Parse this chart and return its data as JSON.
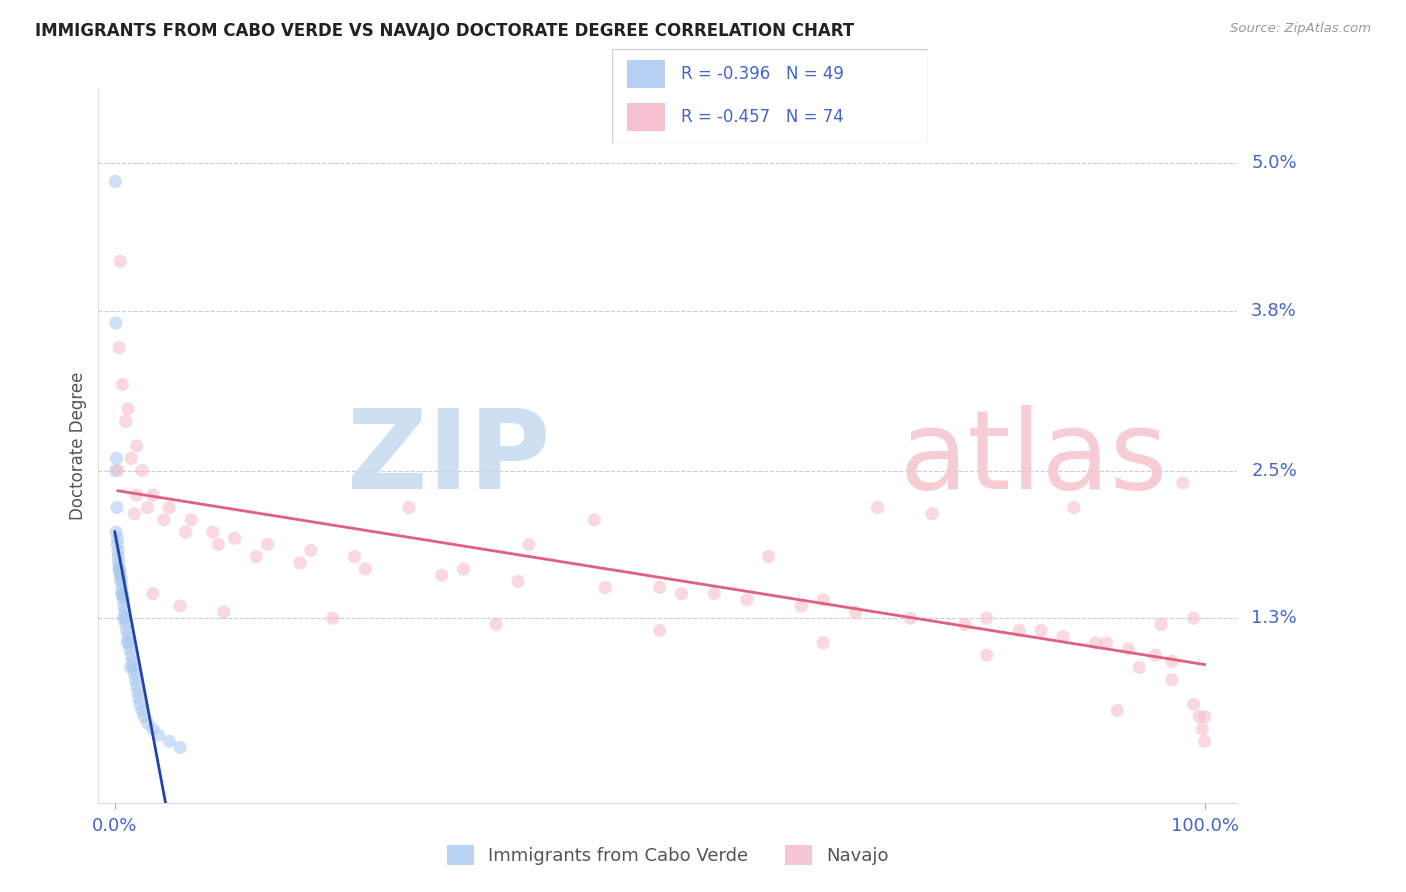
{
  "title": "IMMIGRANTS FROM CABO VERDE VS NAVAJO DOCTORATE DEGREE CORRELATION CHART",
  "source": "Source: ZipAtlas.com",
  "ylabel": "Doctorate Degree",
  "cabo_verde_color": "#A8C8F0",
  "navajo_color": "#F5B8C8",
  "cabo_verde_line_color": "#2244AA",
  "navajo_line_color": "#E06080",
  "axis_label_color": "#4466CC",
  "grid_color": "#CCCCCC",
  "background_color": "#FFFFFF",
  "title_fontsize": 12,
  "marker_size": 90,
  "marker_alpha": 0.55,
  "ytick_vals": [
    5.0,
    3.8,
    2.5,
    1.3
  ],
  "ytick_labels": [
    "5.0%",
    "3.8%",
    "2.5%",
    "1.3%"
  ],
  "legend_text_color": "#4466CC",
  "watermark_zip_color": "#C8DCEF",
  "watermark_atlas_color": "#F5C8D0",
  "cabo_verde_x": [
    0.05,
    0.1,
    0.15,
    0.2,
    0.25,
    0.3,
    0.35,
    0.4,
    0.45,
    0.5,
    0.55,
    0.6,
    0.65,
    0.7,
    0.75,
    0.8,
    0.85,
    0.9,
    0.95,
    1.0,
    1.1,
    1.2,
    1.3,
    1.4,
    1.5,
    1.6,
    1.7,
    1.8,
    1.9,
    2.0,
    2.1,
    2.2,
    2.3,
    2.5,
    2.7,
    3.0,
    3.5,
    4.0,
    5.0,
    6.0,
    0.12,
    0.22,
    0.32,
    0.42,
    0.62,
    0.82,
    1.15,
    1.45,
    0.08
  ],
  "cabo_verde_y": [
    4.85,
    3.7,
    2.6,
    2.2,
    1.95,
    1.85,
    1.75,
    1.7,
    1.68,
    1.65,
    1.62,
    1.6,
    1.55,
    1.5,
    1.48,
    1.45,
    1.4,
    1.35,
    1.3,
    1.25,
    1.2,
    1.15,
    1.1,
    1.05,
    1.0,
    0.95,
    0.9,
    0.85,
    0.8,
    0.75,
    0.7,
    0.65,
    0.6,
    0.55,
    0.5,
    0.45,
    0.4,
    0.35,
    0.3,
    0.25,
    2.0,
    1.9,
    1.8,
    1.7,
    1.5,
    1.3,
    1.1,
    0.9,
    2.5
  ],
  "navajo_x": [
    0.4,
    0.7,
    1.0,
    1.5,
    2.0,
    2.5,
    3.5,
    5.0,
    7.0,
    9.0,
    11.0,
    14.0,
    18.0,
    22.0,
    27.0,
    32.0,
    38.0,
    44.0,
    50.0,
    55.0,
    60.0,
    65.0,
    70.0,
    75.0,
    80.0,
    85.0,
    88.0,
    91.0,
    94.0,
    96.0,
    98.0,
    99.0,
    100.0,
    0.5,
    1.2,
    2.0,
    3.0,
    4.5,
    6.5,
    9.5,
    13.0,
    17.0,
    23.0,
    30.0,
    37.0,
    45.0,
    52.0,
    58.0,
    63.0,
    68.0,
    73.0,
    78.0,
    83.0,
    87.0,
    90.0,
    93.0,
    95.5,
    97.0,
    99.5,
    0.3,
    1.8,
    3.5,
    6.0,
    10.0,
    20.0,
    35.0,
    50.0,
    65.0,
    80.0,
    92.0,
    97.0,
    99.0,
    99.8,
    100.0
  ],
  "navajo_y": [
    3.5,
    3.2,
    2.9,
    2.6,
    2.7,
    2.5,
    2.3,
    2.2,
    2.1,
    2.0,
    1.95,
    1.9,
    1.85,
    1.8,
    2.2,
    1.7,
    1.9,
    2.1,
    1.55,
    1.5,
    1.8,
    1.45,
    2.2,
    2.15,
    1.3,
    1.2,
    2.2,
    1.1,
    0.9,
    1.25,
    2.4,
    1.3,
    0.5,
    4.2,
    3.0,
    2.3,
    2.2,
    2.1,
    2.0,
    1.9,
    1.8,
    1.75,
    1.7,
    1.65,
    1.6,
    1.55,
    1.5,
    1.45,
    1.4,
    1.35,
    1.3,
    1.25,
    1.2,
    1.15,
    1.1,
    1.05,
    1.0,
    0.95,
    0.5,
    2.5,
    2.15,
    1.5,
    1.4,
    1.35,
    1.3,
    1.25,
    1.2,
    1.1,
    1.0,
    0.55,
    0.8,
    0.6,
    0.4,
    0.3
  ]
}
